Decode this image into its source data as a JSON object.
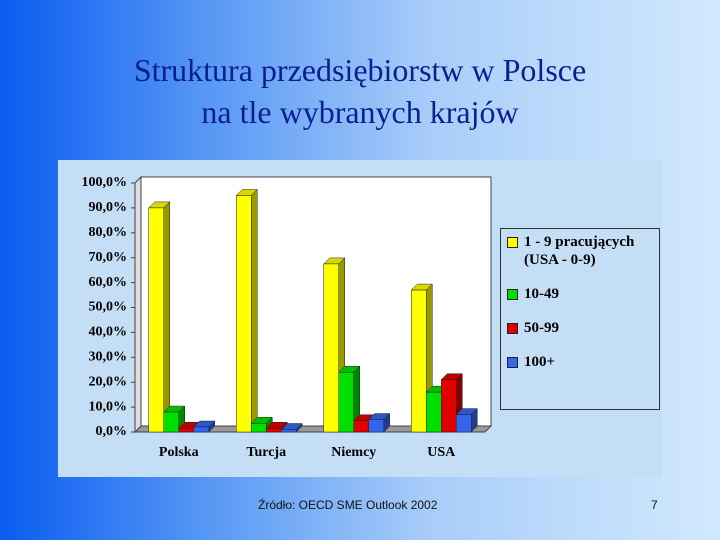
{
  "chart_data": {
    "type": "bar3d",
    "title": "Struktura przedsiębiorstw w Polsce",
    "subtitle": "na tle wybranych krajów",
    "categories": [
      "Polska",
      "Turcja",
      "Niemcy",
      "USA"
    ],
    "series": [
      {
        "name": "1 - 9 pracujących (USA - 0-9)",
        "color": "#ffff00",
        "values": [
          90,
          95,
          67.5,
          57
        ]
      },
      {
        "name": "10-49",
        "color": "#00e000",
        "values": [
          8,
          3.5,
          24,
          16
        ]
      },
      {
        "name": "50-99",
        "color": "#e00000",
        "values": [
          1.5,
          1.5,
          4.5,
          21
        ]
      },
      {
        "name": "100+",
        "color": "#3366ee",
        "values": [
          2,
          1,
          5,
          7
        ]
      }
    ],
    "ylim": [
      0,
      100
    ],
    "yticks": [
      {
        "value": 0,
        "label": "0,0%"
      },
      {
        "value": 10,
        "label": "10,0%"
      },
      {
        "value": 20,
        "label": "20,0%"
      },
      {
        "value": 30,
        "label": "30,0%"
      },
      {
        "value": 40,
        "label": "40,0%"
      },
      {
        "value": 50,
        "label": "50,0%"
      },
      {
        "value": 60,
        "label": "60,0%"
      },
      {
        "value": 70,
        "label": "70,0%"
      },
      {
        "value": 80,
        "label": "80,0%"
      },
      {
        "value": 90,
        "label": "90,0%"
      },
      {
        "value": 100,
        "label": "100,0%"
      }
    ],
    "grid": false,
    "legend": "right",
    "source": "Źródło: OECD SME Outlook 2002",
    "page_number": "7"
  }
}
